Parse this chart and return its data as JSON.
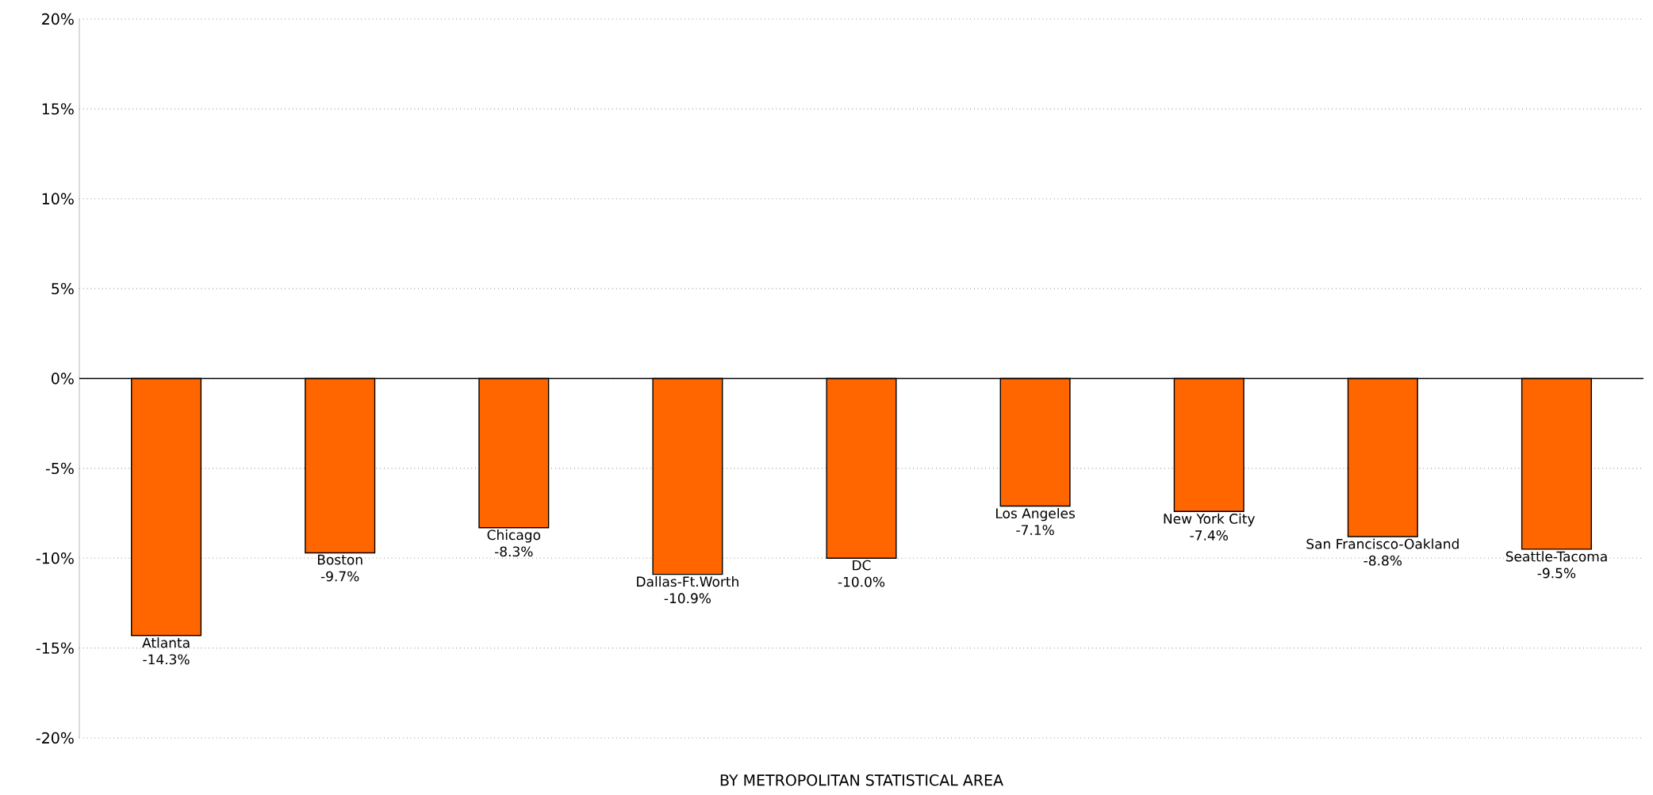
{
  "chart_data": {
    "type": "bar",
    "xlabel": "BY METROPOLITAN STATISTICAL AREA",
    "categories": [
      "Atlanta",
      "Boston",
      "Chicago",
      "Dallas-Ft.Worth",
      "DC",
      "Los Angeles",
      "New York City",
      "San Francisco-Oakland",
      "Seattle-Tacoma"
    ],
    "values": [
      -14.3,
      -9.7,
      -8.3,
      -10.9,
      -10.0,
      -7.1,
      -7.4,
      -8.8,
      -9.5
    ],
    "value_labels": [
      "-14.3%",
      "-9.7%",
      "-8.3%",
      "-10.9%",
      "-10.0%",
      "-7.1%",
      "-7.4%",
      "-8.8%",
      "-9.5%"
    ],
    "color": "#ff6600",
    "ylim": [
      -20,
      20
    ],
    "yticks": [
      {
        "value": -20,
        "label": "-20%"
      },
      {
        "value": -15,
        "label": "-15%"
      },
      {
        "value": -10,
        "label": "-10%"
      },
      {
        "value": -5,
        "label": "-5%"
      },
      {
        "value": 0,
        "label": "0%"
      },
      {
        "value": 5,
        "label": "5%"
      },
      {
        "value": 10,
        "label": "10%"
      },
      {
        "value": 15,
        "label": "15%"
      },
      {
        "value": 20,
        "label": "20%"
      }
    ],
    "grid": "y"
  }
}
